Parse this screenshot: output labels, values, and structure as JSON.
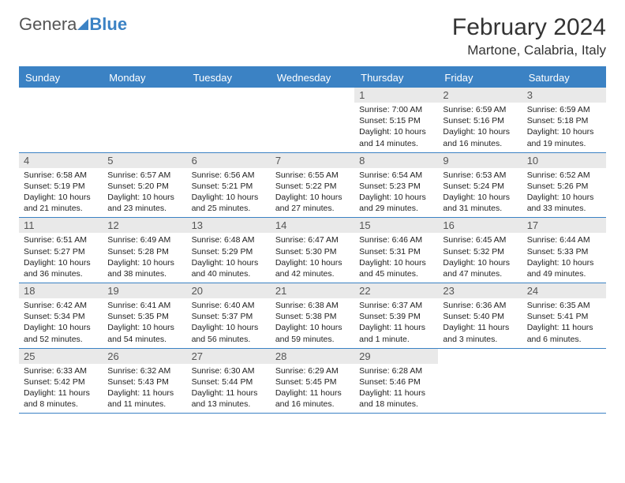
{
  "logo": {
    "part1": "Genera",
    "part2": "Blue"
  },
  "title": "February 2024",
  "location": "Martone, Calabria, Italy",
  "dayNames": [
    "Sunday",
    "Monday",
    "Tuesday",
    "Wednesday",
    "Thursday",
    "Friday",
    "Saturday"
  ],
  "colors": {
    "brand": "#3b82c4",
    "dayBg": "#e9e9e9",
    "text": "#222222",
    "background": "#ffffff"
  },
  "startOffset": 4,
  "days": [
    {
      "n": 1,
      "sunrise": "7:00 AM",
      "sunset": "5:15 PM",
      "daylight": "10 hours and 14 minutes."
    },
    {
      "n": 2,
      "sunrise": "6:59 AM",
      "sunset": "5:16 PM",
      "daylight": "10 hours and 16 minutes."
    },
    {
      "n": 3,
      "sunrise": "6:59 AM",
      "sunset": "5:18 PM",
      "daylight": "10 hours and 19 minutes."
    },
    {
      "n": 4,
      "sunrise": "6:58 AM",
      "sunset": "5:19 PM",
      "daylight": "10 hours and 21 minutes."
    },
    {
      "n": 5,
      "sunrise": "6:57 AM",
      "sunset": "5:20 PM",
      "daylight": "10 hours and 23 minutes."
    },
    {
      "n": 6,
      "sunrise": "6:56 AM",
      "sunset": "5:21 PM",
      "daylight": "10 hours and 25 minutes."
    },
    {
      "n": 7,
      "sunrise": "6:55 AM",
      "sunset": "5:22 PM",
      "daylight": "10 hours and 27 minutes."
    },
    {
      "n": 8,
      "sunrise": "6:54 AM",
      "sunset": "5:23 PM",
      "daylight": "10 hours and 29 minutes."
    },
    {
      "n": 9,
      "sunrise": "6:53 AM",
      "sunset": "5:24 PM",
      "daylight": "10 hours and 31 minutes."
    },
    {
      "n": 10,
      "sunrise": "6:52 AM",
      "sunset": "5:26 PM",
      "daylight": "10 hours and 33 minutes."
    },
    {
      "n": 11,
      "sunrise": "6:51 AM",
      "sunset": "5:27 PM",
      "daylight": "10 hours and 36 minutes."
    },
    {
      "n": 12,
      "sunrise": "6:49 AM",
      "sunset": "5:28 PM",
      "daylight": "10 hours and 38 minutes."
    },
    {
      "n": 13,
      "sunrise": "6:48 AM",
      "sunset": "5:29 PM",
      "daylight": "10 hours and 40 minutes."
    },
    {
      "n": 14,
      "sunrise": "6:47 AM",
      "sunset": "5:30 PM",
      "daylight": "10 hours and 42 minutes."
    },
    {
      "n": 15,
      "sunrise": "6:46 AM",
      "sunset": "5:31 PM",
      "daylight": "10 hours and 45 minutes."
    },
    {
      "n": 16,
      "sunrise": "6:45 AM",
      "sunset": "5:32 PM",
      "daylight": "10 hours and 47 minutes."
    },
    {
      "n": 17,
      "sunrise": "6:44 AM",
      "sunset": "5:33 PM",
      "daylight": "10 hours and 49 minutes."
    },
    {
      "n": 18,
      "sunrise": "6:42 AM",
      "sunset": "5:34 PM",
      "daylight": "10 hours and 52 minutes."
    },
    {
      "n": 19,
      "sunrise": "6:41 AM",
      "sunset": "5:35 PM",
      "daylight": "10 hours and 54 minutes."
    },
    {
      "n": 20,
      "sunrise": "6:40 AM",
      "sunset": "5:37 PM",
      "daylight": "10 hours and 56 minutes."
    },
    {
      "n": 21,
      "sunrise": "6:38 AM",
      "sunset": "5:38 PM",
      "daylight": "10 hours and 59 minutes."
    },
    {
      "n": 22,
      "sunrise": "6:37 AM",
      "sunset": "5:39 PM",
      "daylight": "11 hours and 1 minute."
    },
    {
      "n": 23,
      "sunrise": "6:36 AM",
      "sunset": "5:40 PM",
      "daylight": "11 hours and 3 minutes."
    },
    {
      "n": 24,
      "sunrise": "6:35 AM",
      "sunset": "5:41 PM",
      "daylight": "11 hours and 6 minutes."
    },
    {
      "n": 25,
      "sunrise": "6:33 AM",
      "sunset": "5:42 PM",
      "daylight": "11 hours and 8 minutes."
    },
    {
      "n": 26,
      "sunrise": "6:32 AM",
      "sunset": "5:43 PM",
      "daylight": "11 hours and 11 minutes."
    },
    {
      "n": 27,
      "sunrise": "6:30 AM",
      "sunset": "5:44 PM",
      "daylight": "11 hours and 13 minutes."
    },
    {
      "n": 28,
      "sunrise": "6:29 AM",
      "sunset": "5:45 PM",
      "daylight": "11 hours and 16 minutes."
    },
    {
      "n": 29,
      "sunrise": "6:28 AM",
      "sunset": "5:46 PM",
      "daylight": "11 hours and 18 minutes."
    }
  ],
  "labels": {
    "sunrise": "Sunrise:",
    "sunset": "Sunset:",
    "daylight": "Daylight:"
  }
}
